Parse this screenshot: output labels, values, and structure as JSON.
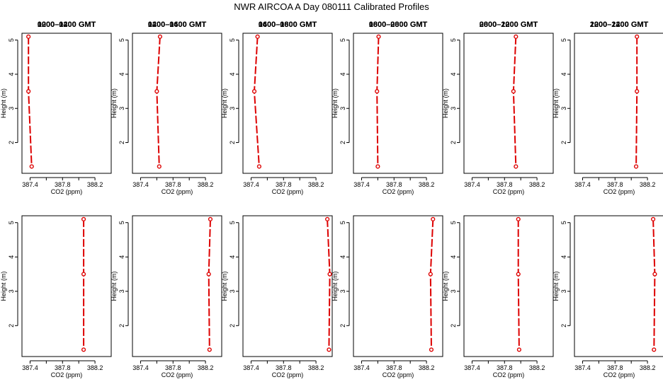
{
  "figure": {
    "title": "NWR AIRCOA A  Day 080111  Calibrated Profiles"
  },
  "chart_data": [
    {
      "type": "line",
      "title": "0000–0200 GMT",
      "xlabel": "CO2 (ppm)",
      "ylabel": "Height (m)",
      "xlim": [
        387.3,
        388.4
      ],
      "ylim": [
        1.1,
        5.2
      ],
      "xticks": [
        "387.4",
        "387.6",
        "387.8",
        "388.0",
        "388.2"
      ],
      "yticks": [
        "2",
        "3",
        "4",
        "5"
      ],
      "color": "#dd0000",
      "series": [
        {
          "x": [
            387.38,
            387.38,
            387.42
          ],
          "y": [
            5.1,
            3.5,
            1.3
          ]
        }
      ]
    },
    {
      "type": "line",
      "title": "0200–0400 GMT",
      "xlabel": "CO2 (ppm)",
      "ylabel": "Height (m)",
      "xlim": [
        387.3,
        388.4
      ],
      "ylim": [
        1.1,
        5.2
      ],
      "xticks": [
        "387.4",
        "387.6",
        "387.8",
        "388.0",
        "388.2"
      ],
      "yticks": [
        "2",
        "3",
        "4",
        "5"
      ],
      "color": "#dd0000",
      "series": [
        {
          "x": [
            387.64,
            387.6,
            387.63
          ],
          "y": [
            5.1,
            3.5,
            1.3
          ]
        }
      ]
    },
    {
      "type": "line",
      "title": "0400–0600 GMT",
      "xlabel": "CO2 (ppm)",
      "ylabel": "Height (m)",
      "xlim": [
        387.3,
        388.4
      ],
      "ylim": [
        1.1,
        5.2
      ],
      "xticks": [
        "387.4",
        "387.6",
        "387.8",
        "388.0",
        "388.2"
      ],
      "yticks": [
        "2",
        "3",
        "4",
        "5"
      ],
      "color": "#dd0000",
      "series": [
        {
          "x": [
            387.48,
            387.44,
            387.5
          ],
          "y": [
            5.1,
            3.5,
            1.3
          ]
        }
      ]
    },
    {
      "type": "line",
      "title": "0600–0800 GMT",
      "xlabel": "CO2 (ppm)",
      "ylabel": "Height (m)",
      "xlim": [
        387.3,
        388.4
      ],
      "ylim": [
        1.1,
        5.2
      ],
      "xticks": [
        "387.4",
        "387.6",
        "387.8",
        "388.0",
        "388.2"
      ],
      "yticks": [
        "2",
        "3",
        "4",
        "5"
      ],
      "color": "#dd0000",
      "series": [
        {
          "x": [
            387.61,
            387.59,
            387.6
          ],
          "y": [
            5.1,
            3.5,
            1.3
          ]
        }
      ]
    },
    {
      "type": "line",
      "title": "0800–1000 GMT",
      "xlabel": "CO2 (ppm)",
      "ylabel": "Height (m)",
      "xlim": [
        387.3,
        388.4
      ],
      "ylim": [
        1.1,
        5.2
      ],
      "xticks": [
        "387.4",
        "387.6",
        "387.8",
        "388.0",
        "388.2"
      ],
      "yticks": [
        "2",
        "3",
        "4",
        "5"
      ],
      "color": "#dd0000",
      "series": [
        {
          "x": [
            387.94,
            387.91,
            387.94
          ],
          "y": [
            5.1,
            3.5,
            1.3
          ]
        }
      ]
    },
    {
      "type": "line",
      "title": "1000–1200 GMT",
      "xlabel": "CO2 (ppm)",
      "ylabel": "Height (m)",
      "xlim": [
        387.3,
        388.4
      ],
      "ylim": [
        1.1,
        5.2
      ],
      "xticks": [
        "387.4",
        "387.6",
        "387.8",
        "388.0",
        "388.2"
      ],
      "yticks": [
        "2",
        "3",
        "4",
        "5"
      ],
      "color": "#dd0000",
      "series": [
        {
          "x": [
            388.07,
            388.07,
            388.06
          ],
          "y": [
            5.1,
            3.5,
            1.3
          ]
        }
      ]
    },
    {
      "type": "line",
      "title": "1200–1400 GMT",
      "xlabel": "CO2 (ppm)",
      "ylabel": "Height (m)",
      "xlim": [
        387.3,
        388.4
      ],
      "ylim": [
        1.1,
        5.2
      ],
      "xticks": [
        "387.4",
        "387.6",
        "387.8",
        "388.0",
        "388.2"
      ],
      "yticks": [
        "2",
        "3",
        "4",
        "5"
      ],
      "color": "#dd0000",
      "series": [
        {
          "x": [
            388.06,
            388.06,
            388.06
          ],
          "y": [
            5.1,
            3.5,
            1.3
          ]
        }
      ]
    },
    {
      "type": "line",
      "title": "1400–1600 GMT",
      "xlabel": "CO2 (ppm)",
      "ylabel": "Height (m)",
      "xlim": [
        387.3,
        388.4
      ],
      "ylim": [
        1.1,
        5.2
      ],
      "xticks": [
        "387.4",
        "387.6",
        "387.8",
        "388.0",
        "388.2"
      ],
      "yticks": [
        "2",
        "3",
        "4",
        "5"
      ],
      "color": "#dd0000",
      "series": [
        {
          "x": [
            388.26,
            388.24,
            388.25
          ],
          "y": [
            5.1,
            3.5,
            1.3
          ]
        }
      ]
    },
    {
      "type": "line",
      "title": "1600–1800 GMT",
      "xlabel": "CO2 (ppm)",
      "ylabel": "Height (m)",
      "xlim": [
        387.3,
        388.4
      ],
      "ylim": [
        1.1,
        5.2
      ],
      "xticks": [
        "387.4",
        "387.6",
        "387.8",
        "388.0",
        "388.2"
      ],
      "yticks": [
        "2",
        "3",
        "4",
        "5"
      ],
      "color": "#dd0000",
      "series": [
        {
          "x": [
            388.34,
            388.37,
            388.36
          ],
          "y": [
            5.1,
            3.5,
            1.3
          ]
        }
      ]
    },
    {
      "type": "line",
      "title": "1800–2000 GMT",
      "xlabel": "CO2 (ppm)",
      "ylabel": "Height (m)",
      "xlim": [
        387.3,
        388.4
      ],
      "ylim": [
        1.1,
        5.2
      ],
      "xticks": [
        "387.4",
        "387.6",
        "387.8",
        "388.0",
        "388.2"
      ],
      "yticks": [
        "2",
        "3",
        "4",
        "5"
      ],
      "color": "#dd0000",
      "series": [
        {
          "x": [
            388.28,
            388.25,
            388.26
          ],
          "y": [
            5.1,
            3.5,
            1.3
          ]
        }
      ]
    },
    {
      "type": "line",
      "title": "2000–2200 GMT",
      "xlabel": "CO2 (ppm)",
      "ylabel": "Height (m)",
      "xlim": [
        387.3,
        388.4
      ],
      "ylim": [
        1.1,
        5.2
      ],
      "xticks": [
        "387.4",
        "387.6",
        "387.8",
        "388.0",
        "388.2"
      ],
      "yticks": [
        "2",
        "3",
        "4",
        "5"
      ],
      "color": "#dd0000",
      "series": [
        {
          "x": [
            387.97,
            387.97,
            387.98
          ],
          "y": [
            5.1,
            3.5,
            1.3
          ]
        }
      ]
    },
    {
      "type": "line",
      "title": "2200–2400 GMT",
      "xlabel": "CO2 (ppm)",
      "ylabel": "Height (m)",
      "xlim": [
        387.3,
        388.4
      ],
      "ylim": [
        1.1,
        5.2
      ],
      "xticks": [
        "387.4",
        "387.6",
        "387.8",
        "388.0",
        "388.2"
      ],
      "yticks": [
        "2",
        "3",
        "4",
        "5"
      ],
      "color": "#dd0000",
      "series": [
        {
          "x": [
            388.27,
            388.29,
            388.28
          ],
          "y": [
            5.1,
            3.5,
            1.3
          ]
        }
      ]
    }
  ]
}
